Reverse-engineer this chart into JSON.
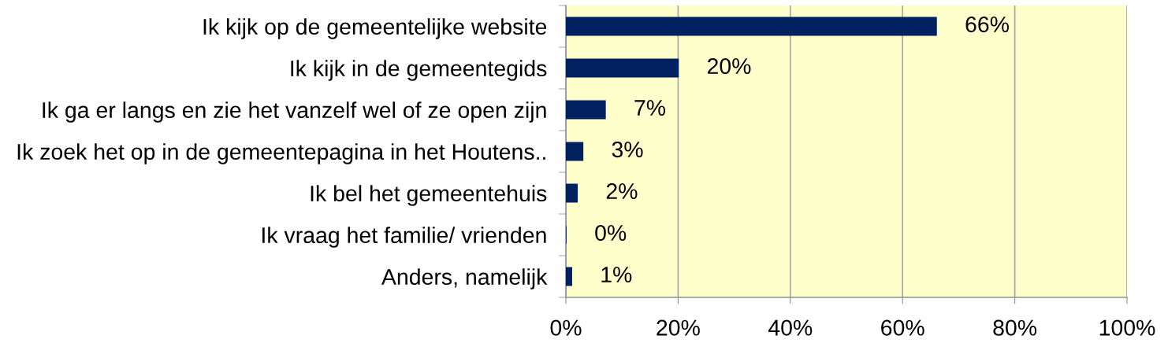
{
  "chart_data": {
    "type": "bar",
    "orientation": "horizontal",
    "categories": [
      "Ik kijk op de gemeentelijke website",
      "Ik kijk in de gemeentegids",
      "Ik ga er langs en zie het vanzelf wel of ze open zijn",
      "Ik zoek het op in de gemeentepagina in het Houtens..",
      "Ik bel het gemeentehuis",
      "Ik vraag het familie/ vrienden",
      "Anders, namelijk"
    ],
    "values": [
      66,
      20,
      7,
      3,
      2,
      0,
      1
    ],
    "value_labels": [
      "66%",
      "20%",
      "7%",
      "3%",
      "2%",
      "0%",
      "1%"
    ],
    "color": "#002060",
    "xlim": [
      0,
      100
    ],
    "xticks": [
      {
        "value": 0,
        "label": "0%"
      },
      {
        "value": 20,
        "label": "20%"
      },
      {
        "value": 40,
        "label": "40%"
      },
      {
        "value": 60,
        "label": "60%"
      },
      {
        "value": 80,
        "label": "80%"
      },
      {
        "value": 100,
        "label": "100%"
      }
    ],
    "grid": "x"
  }
}
